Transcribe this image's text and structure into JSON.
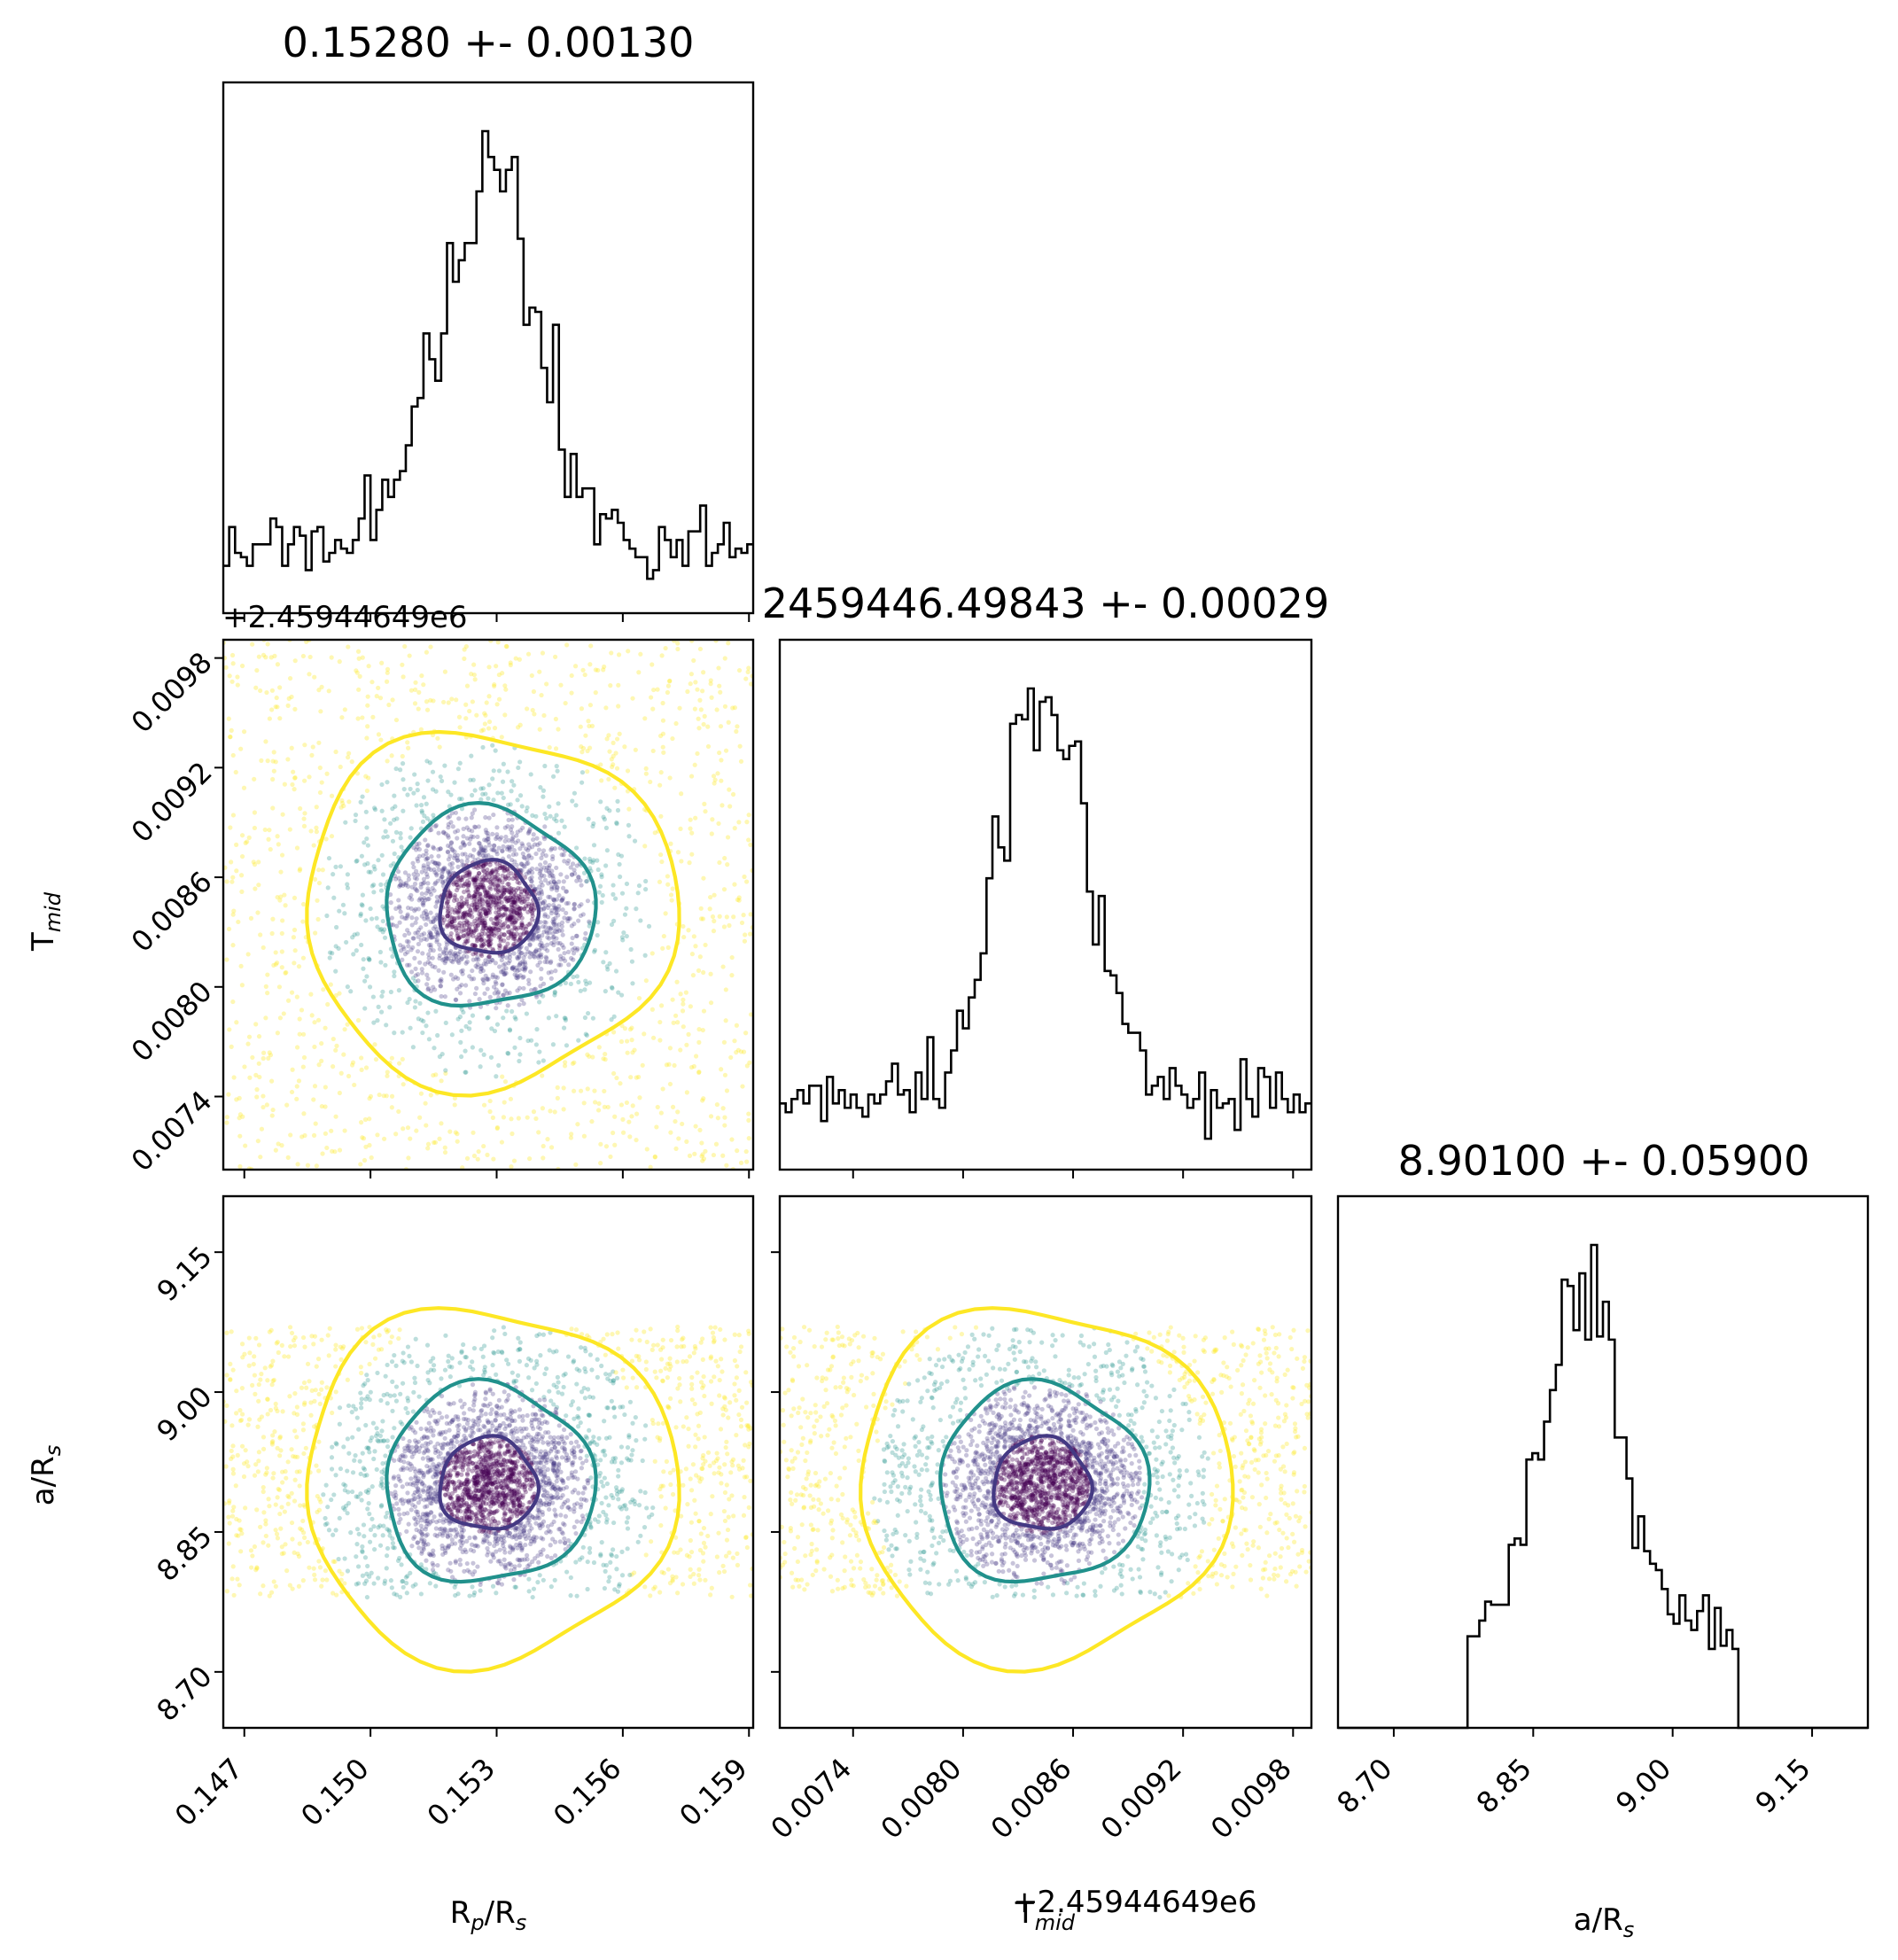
{
  "chart_data": {
    "type": "scatter",
    "variant": "corner plot (1D histograms on diagonal, 2D scatter + density contours below)",
    "parameters": [
      {
        "label_base": "R",
        "label_sub": "p",
        "label_tail": "/R",
        "label_sub2": "s",
        "title": "0.15280 +- 0.00130",
        "median": 0.1528,
        "sigma": 0.0013,
        "range": [
          0.1465,
          0.1591
        ],
        "ticks": [
          "0.147",
          "0.150",
          "0.153",
          "0.156",
          "0.159"
        ],
        "tick_values": [
          0.147,
          0.15,
          0.153,
          0.156,
          0.159
        ]
      },
      {
        "label_base": "T",
        "label_sub": "mid",
        "label_tail": "",
        "label_sub2": "",
        "title": "2459446.49843 +- 0.00029",
        "median": 0.00843,
        "sigma": 0.00029,
        "range": [
          0.007,
          0.0099
        ],
        "ticks": [
          "0.0074",
          "0.0080",
          "0.0086",
          "0.0092",
          "0.0098"
        ],
        "tick_values": [
          0.0074,
          0.008,
          0.0086,
          0.0092,
          0.0098
        ],
        "offset_label": "+2.45944649e6"
      },
      {
        "label_base": "a",
        "label_sub": "",
        "label_tail": "/R",
        "label_sub2": "s",
        "title": "8.90100 +- 0.05900",
        "median": 8.901,
        "sigma": 0.059,
        "range": [
          8.64,
          9.21
        ],
        "ticks": [
          "8.70",
          "8.85",
          "9.00",
          "9.15"
        ],
        "tick_values": [
          8.7,
          8.85,
          9.0,
          9.15
        ],
        "prior_bounds": [
          8.78,
          9.07
        ]
      }
    ],
    "contour_levels": [
      "1-sigma",
      "2-sigma",
      "3-sigma"
    ],
    "colors": {
      "contour_1": "#443983",
      "contour_2": "#21918c",
      "contour_3": "#fde725",
      "point_core": "#440154",
      "histogram": "#000000"
    }
  }
}
